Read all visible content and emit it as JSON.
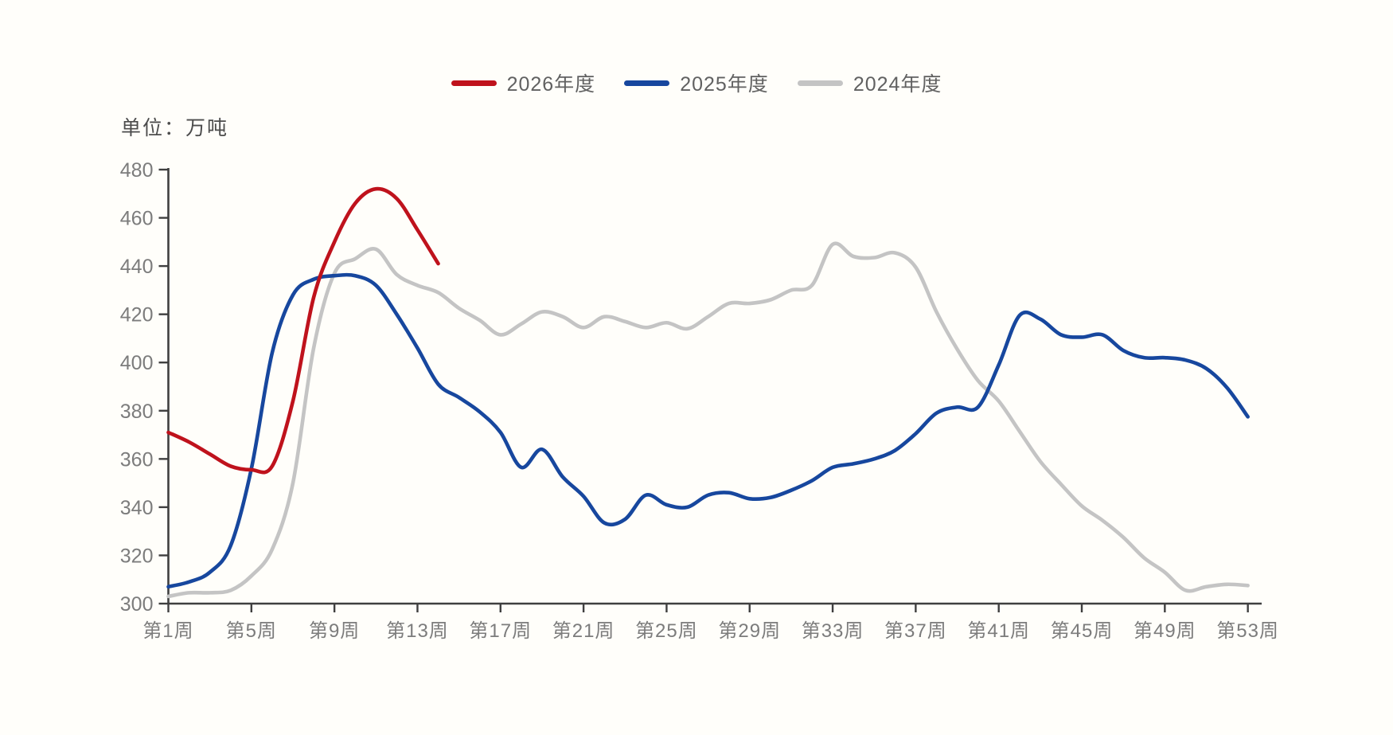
{
  "unit_label": "单位：万吨",
  "colors": {
    "series_2026": "#bf121c",
    "series_2025": "#17479e",
    "series_2024": "#c4c4c4",
    "axis": "#3f3f3f",
    "tick_text": "#7c7c7c",
    "background": "#fffefa"
  },
  "chart_data": {
    "type": "line",
    "title": "",
    "xlabel": "",
    "ylabel": "",
    "unit_label": "单位：万吨",
    "ylim": [
      300,
      480
    ],
    "yticks": [
      300,
      320,
      340,
      360,
      380,
      400,
      420,
      440,
      460,
      480
    ],
    "x_range_weeks": [
      1,
      53
    ],
    "xtick_weeks": [
      1,
      5,
      9,
      13,
      17,
      21,
      25,
      29,
      33,
      37,
      41,
      45,
      49,
      53
    ],
    "xtick_labels": [
      "第1周",
      "第5周",
      "第9周",
      "第13周",
      "第17周",
      "第21周",
      "第25周",
      "第29周",
      "第33周",
      "第37周",
      "第41周",
      "第45周",
      "第49周",
      "第53周"
    ],
    "grid": false,
    "legend_position": "top-center",
    "legend": [
      {
        "label": "2026年度",
        "color": "#bf121c"
      },
      {
        "label": "2025年度",
        "color": "#17479e"
      },
      {
        "label": "2024年度",
        "color": "#c4c4c4"
      }
    ],
    "series": [
      {
        "name": "2024年度",
        "color": "#c4c4c4",
        "start_week": 1,
        "values": [
          303,
          304.5,
          304.5,
          305.5,
          311.5,
          322.5,
          350,
          406,
          437,
          443,
          447,
          436.5,
          432,
          429,
          422.5,
          417.5,
          411.5,
          416,
          421,
          419,
          414.5,
          419,
          417,
          414.5,
          416.5,
          414,
          419,
          424.5,
          424.5,
          426,
          430,
          432,
          449,
          444,
          443.5,
          445.5,
          439.5,
          421,
          405.5,
          392.5,
          384,
          371.5,
          359,
          349.5,
          340.5,
          334.5,
          327.5,
          319,
          313,
          305.5,
          307,
          308,
          307.5
        ]
      },
      {
        "name": "2025年度",
        "color": "#17479e",
        "start_week": 1,
        "values": [
          307,
          309,
          313,
          324,
          356,
          404,
          428,
          434.5,
          436,
          436,
          432,
          420,
          406,
          391,
          385.5,
          379.5,
          371,
          356.5,
          364,
          352.5,
          344.5,
          333.5,
          335,
          345,
          341,
          340,
          345,
          346,
          343.5,
          344,
          347,
          351,
          356.5,
          358,
          360,
          363.5,
          370.5,
          379,
          381.5,
          381.5,
          399,
          419.5,
          418,
          411.5,
          410.5,
          411.5,
          405,
          402,
          402,
          401,
          397.5,
          389.5,
          377.5
        ]
      },
      {
        "name": "2026年度",
        "color": "#bf121c",
        "start_week": 1,
        "values": [
          371,
          367,
          362,
          357,
          355.5,
          357,
          384,
          427,
          450,
          466,
          472,
          468,
          455,
          441
        ]
      }
    ]
  }
}
